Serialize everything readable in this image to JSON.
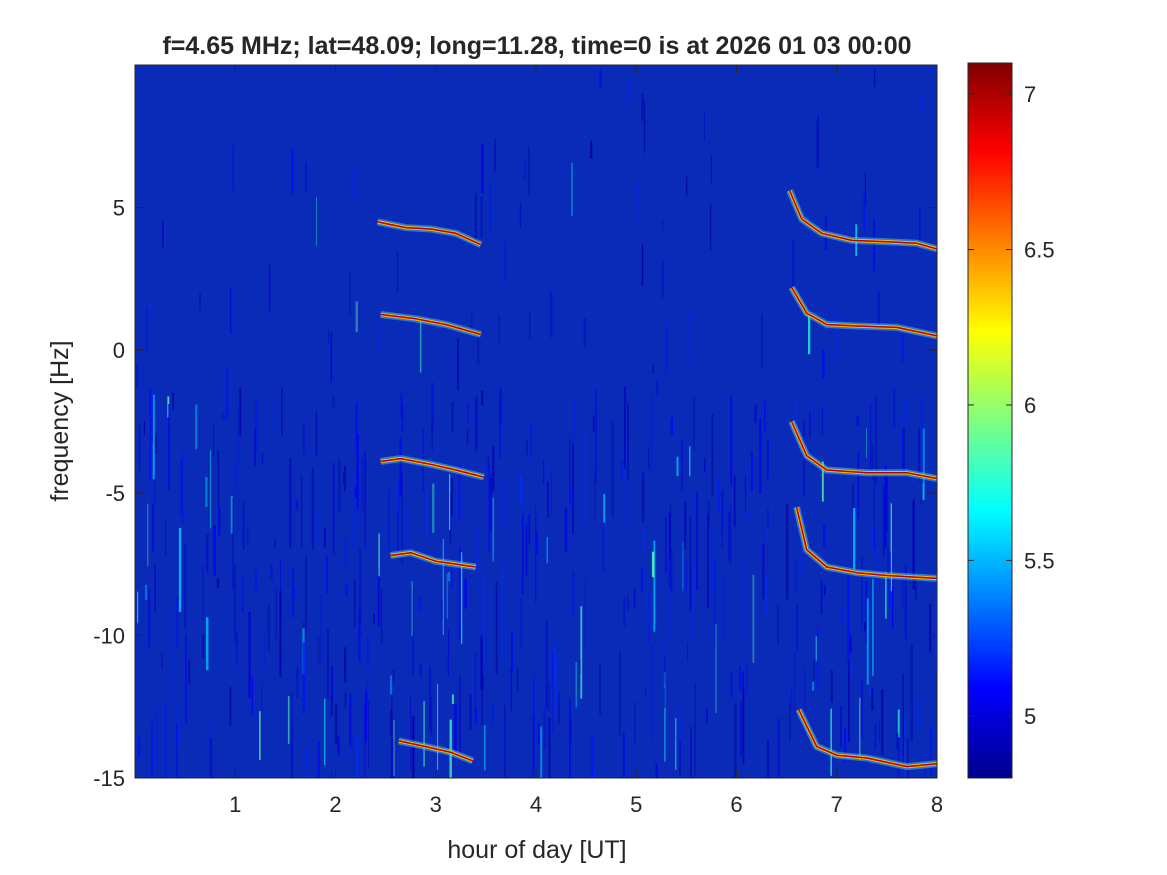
{
  "chart_data": {
    "type": "heatmap",
    "title": "f=4.65 MHz;  lat=48.09; long=11.28, time=0 is at 2026 01 03 00:00",
    "xlabel": "hour of day [UT]",
    "ylabel": "frequency [Hz]",
    "xlim": [
      0,
      8
    ],
    "ylim": [
      -15,
      10
    ],
    "xticks": [
      1,
      2,
      3,
      4,
      5,
      6,
      7,
      8
    ],
    "xtick_labels": [
      "1",
      "2",
      "3",
      "4",
      "5",
      "6",
      "7",
      "8"
    ],
    "yticks": [
      -15,
      -10,
      -5,
      0,
      5
    ],
    "ytick_labels": [
      "-15",
      "-10",
      "-5",
      "0",
      "5"
    ],
    "colorbar": {
      "colormap": "jet",
      "clim": [
        4.8,
        7.1
      ],
      "ticks": [
        5,
        5.5,
        6,
        6.5,
        7
      ],
      "tick_labels": [
        "5",
        "5.5",
        "6",
        "6.5",
        "7"
      ]
    },
    "background_level": 5.0,
    "traces": [
      {
        "points": [
          [
            2.42,
            4.5
          ],
          [
            2.7,
            4.3
          ],
          [
            2.95,
            4.25
          ],
          [
            3.2,
            4.1
          ],
          [
            3.45,
            3.7
          ]
        ]
      },
      {
        "points": [
          [
            2.45,
            1.25
          ],
          [
            2.8,
            1.1
          ],
          [
            3.1,
            0.9
          ],
          [
            3.45,
            0.55
          ]
        ]
      },
      {
        "points": [
          [
            2.45,
            -3.9
          ],
          [
            2.65,
            -3.8
          ],
          [
            2.95,
            -4.0
          ],
          [
            3.2,
            -4.2
          ],
          [
            3.48,
            -4.45
          ]
        ]
      },
      {
        "points": [
          [
            2.55,
            -7.2
          ],
          [
            2.75,
            -7.1
          ],
          [
            3.0,
            -7.4
          ],
          [
            3.4,
            -7.6
          ]
        ]
      },
      {
        "points": [
          [
            2.63,
            -13.7
          ],
          [
            2.9,
            -13.9
          ],
          [
            3.15,
            -14.1
          ],
          [
            3.37,
            -14.4
          ]
        ]
      },
      {
        "points": [
          [
            6.53,
            5.6
          ],
          [
            6.65,
            4.6
          ],
          [
            6.85,
            4.1
          ],
          [
            7.15,
            3.85
          ],
          [
            7.5,
            3.8
          ],
          [
            7.8,
            3.75
          ],
          [
            8.0,
            3.55
          ]
        ]
      },
      {
        "points": [
          [
            6.55,
            2.2
          ],
          [
            6.7,
            1.3
          ],
          [
            6.9,
            0.9
          ],
          [
            7.2,
            0.85
          ],
          [
            7.6,
            0.8
          ],
          [
            8.0,
            0.5
          ]
        ]
      },
      {
        "points": [
          [
            6.55,
            -2.5
          ],
          [
            6.7,
            -3.7
          ],
          [
            6.9,
            -4.2
          ],
          [
            7.3,
            -4.3
          ],
          [
            7.7,
            -4.3
          ],
          [
            8.0,
            -4.5
          ]
        ]
      },
      {
        "points": [
          [
            6.6,
            -5.5
          ],
          [
            6.7,
            -7.0
          ],
          [
            6.9,
            -7.6
          ],
          [
            7.2,
            -7.8
          ],
          [
            7.5,
            -7.9
          ],
          [
            8.0,
            -8.0
          ]
        ]
      },
      {
        "points": [
          [
            6.62,
            -12.6
          ],
          [
            6.8,
            -13.9
          ],
          [
            7.0,
            -14.2
          ],
          [
            7.3,
            -14.3
          ],
          [
            7.7,
            -14.6
          ],
          [
            8.0,
            -14.5
          ]
        ]
      }
    ]
  }
}
